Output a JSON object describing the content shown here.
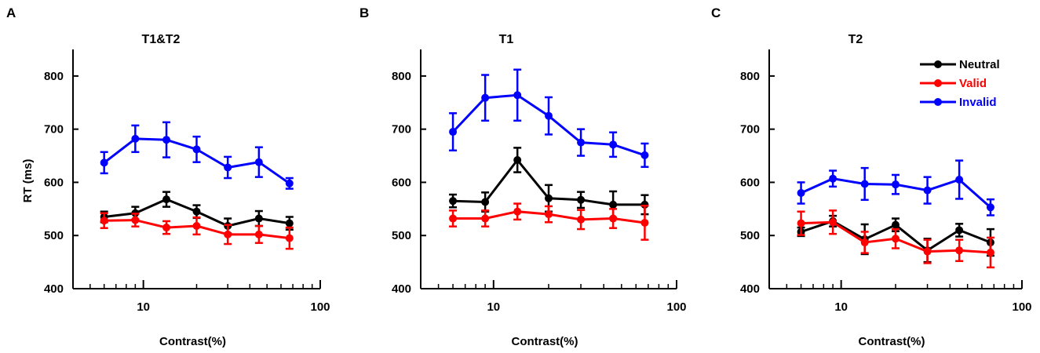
{
  "chart_data": [
    {
      "type": "line",
      "panel_label": "A",
      "title": "T1&T2",
      "xlabel": "Contrast(%)",
      "ylabel": "RT (ms)",
      "xscale": "log",
      "xlim": [
        4,
        100
      ],
      "ylim": [
        400,
        850
      ],
      "yticks": [
        400,
        500,
        600,
        700,
        800
      ],
      "xticks_major": [
        10,
        100
      ],
      "xtick_labels": [
        "10",
        "100"
      ],
      "x": [
        6,
        9,
        13.5,
        20,
        30,
        45,
        67
      ],
      "series": [
        {
          "name": "Neutral",
          "color": "#000000",
          "values": [
            535,
            542,
            568,
            545,
            518,
            532,
            523
          ],
          "errors": [
            10,
            12,
            14,
            12,
            14,
            14,
            12
          ]
        },
        {
          "name": "Valid",
          "color": "#ff0000",
          "values": [
            528,
            529,
            515,
            518,
            502,
            502,
            495
          ],
          "errors": [
            14,
            12,
            12,
            16,
            18,
            16,
            20
          ]
        },
        {
          "name": "Invalid",
          "color": "#0000ff",
          "values": [
            637,
            682,
            680,
            662,
            628,
            638,
            598
          ],
          "errors": [
            20,
            25,
            33,
            24,
            20,
            28,
            10
          ]
        }
      ]
    },
    {
      "type": "line",
      "panel_label": "B",
      "title": "T1",
      "xlabel": "Contrast(%)",
      "ylabel": "",
      "xscale": "log",
      "xlim": [
        4,
        100
      ],
      "ylim": [
        400,
        850
      ],
      "yticks": [
        400,
        500,
        600,
        700,
        800
      ],
      "xticks_major": [
        10,
        100
      ],
      "xtick_labels": [
        "10",
        "100"
      ],
      "x": [
        6,
        9,
        13.5,
        20,
        30,
        45,
        67
      ],
      "series": [
        {
          "name": "Neutral",
          "color": "#000000",
          "values": [
            565,
            563,
            642,
            570,
            567,
            558,
            558
          ],
          "errors": [
            12,
            18,
            23,
            25,
            15,
            25,
            18
          ]
        },
        {
          "name": "Valid",
          "color": "#ff0000",
          "values": [
            532,
            532,
            545,
            540,
            530,
            532,
            524
          ],
          "errors": [
            15,
            15,
            15,
            15,
            18,
            18,
            32
          ]
        },
        {
          "name": "Invalid",
          "color": "#0000ff",
          "values": [
            695,
            759,
            764,
            725,
            675,
            671,
            651
          ],
          "errors": [
            35,
            43,
            48,
            35,
            25,
            23,
            22
          ]
        }
      ]
    },
    {
      "type": "line",
      "panel_label": "C",
      "title": "T2",
      "xlabel": "Contrast(%)",
      "ylabel": "",
      "xscale": "log",
      "xlim": [
        4,
        100
      ],
      "ylim": [
        400,
        850
      ],
      "yticks": [
        400,
        500,
        600,
        700,
        800
      ],
      "xticks_major": [
        10,
        100
      ],
      "xtick_labels": [
        "10",
        "100"
      ],
      "x": [
        6,
        9,
        13.5,
        20,
        30,
        45,
        67
      ],
      "legend": {
        "position": "top-right",
        "entries": [
          "Neutral",
          "Valid",
          "Invalid"
        ]
      },
      "series": [
        {
          "name": "Neutral",
          "color": "#000000",
          "values": [
            507,
            527,
            493,
            520,
            472,
            510,
            487
          ],
          "errors": [
            8,
            10,
            28,
            12,
            22,
            12,
            25
          ]
        },
        {
          "name": "Valid",
          "color": "#ff0000",
          "values": [
            523,
            525,
            487,
            494,
            470,
            472,
            468
          ],
          "errors": [
            22,
            22,
            20,
            18,
            22,
            20,
            28
          ]
        },
        {
          "name": "Invalid",
          "color": "#0000ff",
          "values": [
            580,
            607,
            597,
            596,
            585,
            605,
            553
          ],
          "errors": [
            20,
            15,
            30,
            18,
            25,
            36,
            15
          ]
        }
      ]
    }
  ]
}
